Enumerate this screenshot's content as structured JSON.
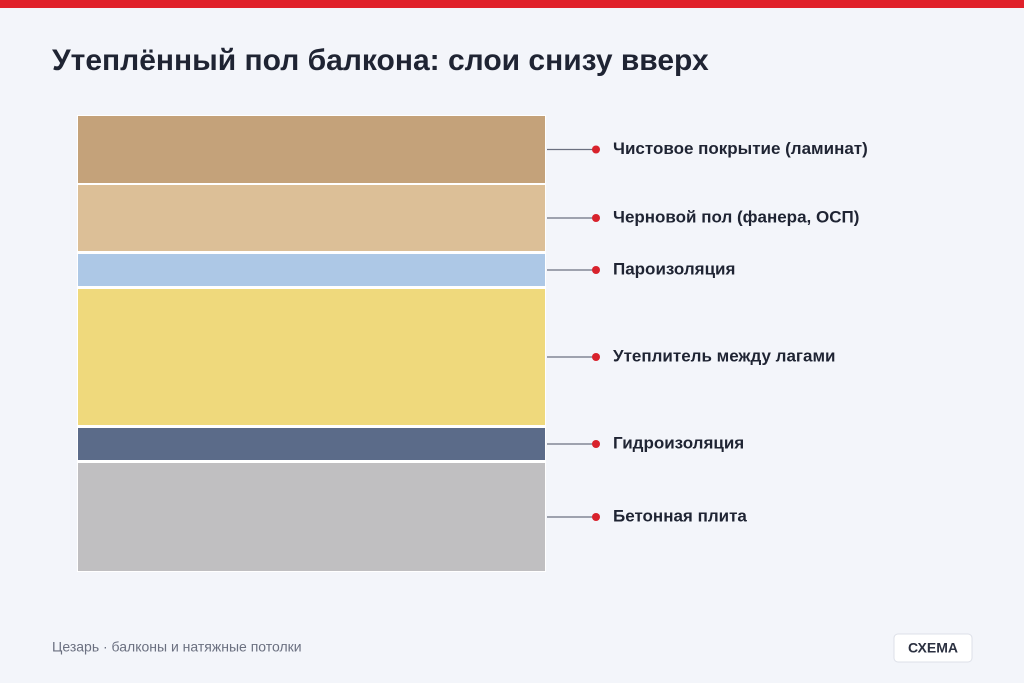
{
  "header": {
    "title": "Утеплённый пол балкона: слои снизу вверх"
  },
  "layers": [
    {
      "label": "Чистовое покрытие (ламинат)"
    },
    {
      "label": "Черновой пол (фанера, ОСП)"
    },
    {
      "label": "Пароизоляция"
    },
    {
      "label": "Утеплитель между лагами"
    },
    {
      "label": "Гидроизоляция"
    },
    {
      "label": "Бетонная плита"
    }
  ],
  "footer": {
    "source": "Цезарь · балконы и натяжные потолки",
    "badge": "СХЕМА"
  }
}
